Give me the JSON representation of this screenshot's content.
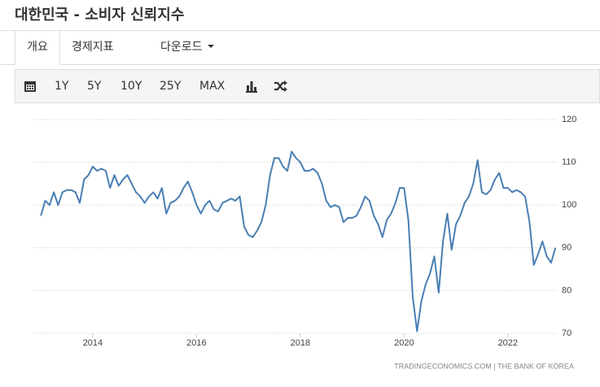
{
  "header": {
    "title": "대한민국 - 소비자 신뢰지수"
  },
  "tabs": [
    "개요",
    "경제지표",
    "다운로드"
  ],
  "toolbar": {
    "ranges": [
      "1Y",
      "5Y",
      "10Y",
      "25Y",
      "MAX"
    ]
  },
  "chart_data": {
    "type": "line",
    "source": "TRADINGECONOMICS.COM | THE BANK OF KOREA",
    "color": "#4a7fb3",
    "grid": true,
    "xlim": [
      2012.84,
      2022.96
    ],
    "xticks": [
      2014,
      2016,
      2018,
      2020,
      2022
    ],
    "ylim": [
      70,
      120
    ],
    "yticks": [
      70,
      80,
      90,
      100,
      110,
      120
    ],
    "x": [
      2013.0,
      2013.083,
      2013.167,
      2013.25,
      2013.333,
      2013.417,
      2013.5,
      2013.583,
      2013.667,
      2013.75,
      2013.833,
      2013.917,
      2014.0,
      2014.083,
      2014.167,
      2014.25,
      2014.333,
      2014.417,
      2014.5,
      2014.583,
      2014.667,
      2014.75,
      2014.833,
      2014.917,
      2015.0,
      2015.083,
      2015.167,
      2015.25,
      2015.333,
      2015.417,
      2015.5,
      2015.583,
      2015.667,
      2015.75,
      2015.833,
      2015.917,
      2016.0,
      2016.083,
      2016.167,
      2016.25,
      2016.333,
      2016.417,
      2016.5,
      2016.583,
      2016.667,
      2016.75,
      2016.833,
      2016.917,
      2017.0,
      2017.083,
      2017.167,
      2017.25,
      2017.333,
      2017.417,
      2017.5,
      2017.583,
      2017.667,
      2017.75,
      2017.833,
      2017.917,
      2018.0,
      2018.083,
      2018.167,
      2018.25,
      2018.333,
      2018.417,
      2018.5,
      2018.583,
      2018.667,
      2018.75,
      2018.833,
      2018.917,
      2019.0,
      2019.083,
      2019.167,
      2019.25,
      2019.333,
      2019.417,
      2019.5,
      2019.583,
      2019.667,
      2019.75,
      2019.833,
      2019.917,
      2020.0,
      2020.083,
      2020.167,
      2020.25,
      2020.333,
      2020.417,
      2020.5,
      2020.583,
      2020.667,
      2020.75,
      2020.833,
      2020.917,
      2021.0,
      2021.083,
      2021.167,
      2021.25,
      2021.333,
      2021.417,
      2021.5,
      2021.583,
      2021.667,
      2021.75,
      2021.833,
      2021.917,
      2022.0,
      2022.083,
      2022.167,
      2022.25,
      2022.333,
      2022.417,
      2022.5,
      2022.583,
      2022.667,
      2022.75,
      2022.833,
      2022.917
    ],
    "values": [
      97.5,
      101,
      100,
      103,
      100,
      103,
      103.5,
      103.5,
      103,
      100.5,
      106,
      107,
      109,
      108,
      108.5,
      108,
      104,
      107,
      104.5,
      106,
      107,
      105,
      103,
      102,
      100.5,
      102,
      103,
      101.5,
      104,
      98,
      100.5,
      101,
      102,
      104,
      105.5,
      103,
      100,
      98,
      100,
      101,
      99,
      98.5,
      100.5,
      101,
      101.5,
      101,
      102,
      95,
      93,
      92.5,
      94,
      96,
      100,
      107,
      111,
      111,
      109,
      108,
      112.5,
      111,
      110,
      108,
      108,
      108.5,
      107.5,
      105,
      101,
      99.5,
      100,
      99.5,
      96,
      97,
      97,
      97.5,
      99.5,
      102,
      101,
      97.5,
      95.5,
      92.5,
      96.5,
      98,
      100.5,
      104,
      104,
      96.5,
      78.5,
      70.5,
      77.5,
      81.5,
      84,
      88,
      79.5,
      91.5,
      98,
      89.5,
      95.5,
      97.5,
      100.5,
      102,
      105,
      110.5,
      103,
      102.5,
      103.5,
      106,
      107.5,
      104,
      104,
      103,
      103.5,
      103,
      102,
      96,
      86,
      88.5,
      91.5,
      88,
      86.5,
      90
    ]
  }
}
